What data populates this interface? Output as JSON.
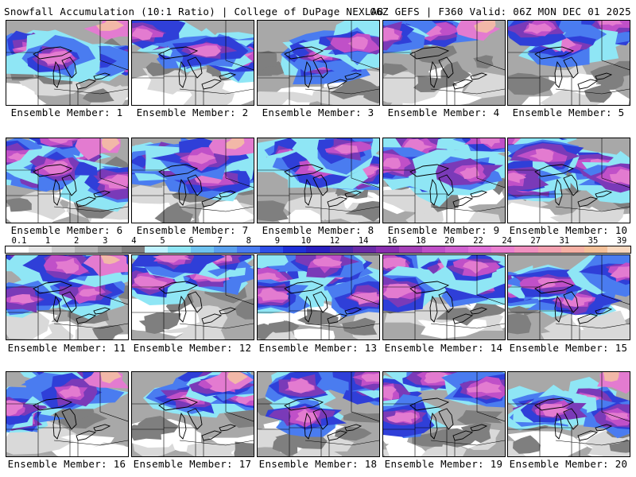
{
  "header": {
    "left": "Snowfall Accumulation (10:1 Ratio) | College of DuPage NEXLAB",
    "right": "06Z GEFS | F360 Valid: 06Z MON DEC 01 2025"
  },
  "panels": [
    {
      "label": "Ensemble Member: 1"
    },
    {
      "label": "Ensemble Member: 2"
    },
    {
      "label": "Ensemble Member: 3"
    },
    {
      "label": "Ensemble Member: 4"
    },
    {
      "label": "Ensemble Member: 5"
    },
    {
      "label": "Ensemble Member: 6"
    },
    {
      "label": "Ensemble Member: 7"
    },
    {
      "label": "Ensemble Member: 8"
    },
    {
      "label": "Ensemble Member: 9"
    },
    {
      "label": "Ensemble Member: 10"
    },
    {
      "label": "Ensemble Member: 11"
    },
    {
      "label": "Ensemble Member: 12"
    },
    {
      "label": "Ensemble Member: 13"
    },
    {
      "label": "Ensemble Member: 14"
    },
    {
      "label": "Ensemble Member: 15"
    },
    {
      "label": "Ensemble Member: 16"
    },
    {
      "label": "Ensemble Member: 17"
    },
    {
      "label": "Ensemble Member: 18"
    },
    {
      "label": "Ensemble Member: 19"
    },
    {
      "label": "Ensemble Member: 20"
    }
  ],
  "legend": {
    "labels": [
      "0.1",
      "1",
      "2",
      "3",
      "4",
      "5",
      "6",
      "7",
      "8",
      "9",
      "10",
      "12",
      "14",
      "16",
      "18",
      "20",
      "22",
      "24",
      "27",
      "31",
      "35",
      "39"
    ],
    "colors": [
      "#ffffff",
      "#e6e6e6",
      "#cccccc",
      "#b3b3b3",
      "#999999",
      "#808080",
      "#bff2ff",
      "#8fe6f5",
      "#6fc3f0",
      "#5aa0ee",
      "#4a7cf0",
      "#2f4fe8",
      "#1f2fd8",
      "#2a1fc0",
      "#4a2aa8",
      "#6a2ba8",
      "#8a2fb0",
      "#a540b8",
      "#c050c8",
      "#d062d0",
      "#e070d8",
      "#ea80d0",
      "#f090c0",
      "#f4a0b0",
      "#f6b0a4",
      "#f4c098",
      "#f8d8c0"
    ]
  },
  "map_colors": {
    "gray_light": "#d9d9d9",
    "gray_mid": "#a8a8a8",
    "gray_dark": "#7f7f7f",
    "cyan": "#8fe6f5",
    "blue": "#4a7cf0",
    "deep_blue": "#2f3fd8",
    "purple": "#7a3ab8",
    "magenta": "#c050c8",
    "pink": "#e37bd0",
    "peach": "#f2b8a8",
    "white": "#ffffff",
    "outline": "#000000"
  }
}
